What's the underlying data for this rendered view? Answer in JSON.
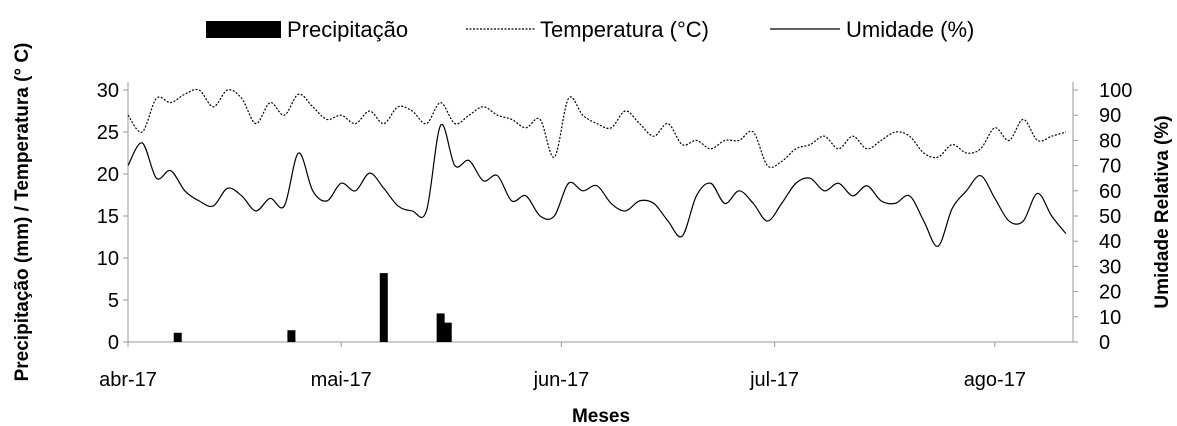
{
  "chart_data": {
    "type": "bar",
    "legend": {
      "position": "top",
      "items": [
        "Precipitação",
        "Temperatura (°C)",
        "Umidade (%)"
      ]
    },
    "x": {
      "label": "Meses",
      "tick_labels": [
        "abr-17",
        "mai-17",
        "jun-17",
        "jul-17",
        "ago-17"
      ],
      "range": [
        "2017-04-01",
        "2017-08-12"
      ]
    },
    "y_left": {
      "label": "Precipitação (mm) / Temperatura (° C)",
      "range": [
        0,
        30
      ],
      "ticks": [
        "0",
        "5",
        "10",
        "15",
        "20",
        "25",
        "30"
      ]
    },
    "y_right": {
      "label": "Umidade Relativa (%)",
      "range": [
        0,
        100
      ],
      "ticks": [
        "0",
        "10",
        "20",
        "30",
        "40",
        "50",
        "60",
        "70",
        "80",
        "90",
        "100"
      ]
    },
    "grid": false,
    "series": [
      {
        "name": "Precipitação",
        "type": "bar",
        "axis": "left",
        "color": "#000000",
        "x": [
          "2017-04-08",
          "2017-04-24",
          "2017-05-07",
          "2017-05-15",
          "2017-05-16"
        ],
        "values": [
          1.1,
          1.4,
          8.2,
          3.4,
          2.3
        ]
      },
      {
        "name": "Temperatura (°C)",
        "type": "line",
        "style": "dotted",
        "axis": "left",
        "color": "#000000",
        "x": [
          "2017-04-01",
          "2017-04-03",
          "2017-04-05",
          "2017-04-07",
          "2017-04-09",
          "2017-04-11",
          "2017-04-13",
          "2017-04-15",
          "2017-04-17",
          "2017-04-19",
          "2017-04-21",
          "2017-04-23",
          "2017-04-25",
          "2017-04-27",
          "2017-04-29",
          "2017-05-01",
          "2017-05-03",
          "2017-05-05",
          "2017-05-07",
          "2017-05-09",
          "2017-05-11",
          "2017-05-13",
          "2017-05-15",
          "2017-05-17",
          "2017-05-19",
          "2017-05-21",
          "2017-05-23",
          "2017-05-25",
          "2017-05-27",
          "2017-05-29",
          "2017-05-31",
          "2017-06-02",
          "2017-06-04",
          "2017-06-06",
          "2017-06-08",
          "2017-06-10",
          "2017-06-12",
          "2017-06-14",
          "2017-06-16",
          "2017-06-18",
          "2017-06-20",
          "2017-06-22",
          "2017-06-24",
          "2017-06-26",
          "2017-06-28",
          "2017-06-30",
          "2017-07-02",
          "2017-07-04",
          "2017-07-06",
          "2017-07-08",
          "2017-07-10",
          "2017-07-12",
          "2017-07-14",
          "2017-07-16",
          "2017-07-18",
          "2017-07-20",
          "2017-07-22",
          "2017-07-24",
          "2017-07-26",
          "2017-07-28",
          "2017-07-30",
          "2017-08-01",
          "2017-08-03",
          "2017-08-05",
          "2017-08-07",
          "2017-08-09",
          "2017-08-11"
        ],
        "values": [
          27.0,
          25.0,
          29.0,
          28.5,
          29.5,
          30.0,
          28.0,
          30.0,
          29.0,
          26.0,
          28.5,
          27.0,
          29.5,
          28.0,
          26.5,
          27.0,
          26.0,
          27.5,
          26.0,
          28.0,
          27.5,
          26.0,
          28.5,
          26.0,
          27.0,
          28.0,
          27.0,
          26.5,
          25.5,
          26.5,
          22.0,
          29.0,
          27.0,
          26.0,
          25.5,
          27.5,
          26.0,
          24.5,
          26.0,
          23.5,
          24.0,
          23.0,
          24.0,
          24.0,
          25.0,
          21.0,
          21.5,
          23.0,
          23.5,
          24.5,
          23.0,
          24.5,
          23.0,
          24.0,
          25.0,
          24.5,
          22.5,
          22.0,
          23.5,
          22.5,
          23.0,
          25.5,
          24.0,
          26.5,
          24.0,
          24.5,
          25.0
        ]
      },
      {
        "name": "Umidade (%)",
        "type": "line",
        "style": "solid",
        "axis": "right",
        "color": "#000000",
        "x": [
          "2017-04-01",
          "2017-04-03",
          "2017-04-05",
          "2017-04-07",
          "2017-04-09",
          "2017-04-11",
          "2017-04-13",
          "2017-04-15",
          "2017-04-17",
          "2017-04-19",
          "2017-04-21",
          "2017-04-23",
          "2017-04-25",
          "2017-04-27",
          "2017-04-29",
          "2017-05-01",
          "2017-05-03",
          "2017-05-05",
          "2017-05-07",
          "2017-05-09",
          "2017-05-11",
          "2017-05-13",
          "2017-05-15",
          "2017-05-17",
          "2017-05-19",
          "2017-05-21",
          "2017-05-23",
          "2017-05-25",
          "2017-05-27",
          "2017-05-29",
          "2017-05-31",
          "2017-06-02",
          "2017-06-04",
          "2017-06-06",
          "2017-06-08",
          "2017-06-10",
          "2017-06-12",
          "2017-06-14",
          "2017-06-16",
          "2017-06-18",
          "2017-06-20",
          "2017-06-22",
          "2017-06-24",
          "2017-06-26",
          "2017-06-28",
          "2017-06-30",
          "2017-07-02",
          "2017-07-04",
          "2017-07-06",
          "2017-07-08",
          "2017-07-10",
          "2017-07-12",
          "2017-07-14",
          "2017-07-16",
          "2017-07-18",
          "2017-07-20",
          "2017-07-22",
          "2017-07-24",
          "2017-07-26",
          "2017-07-28",
          "2017-07-30",
          "2017-08-01",
          "2017-08-03",
          "2017-08-05",
          "2017-08-07",
          "2017-08-09",
          "2017-08-11"
        ],
        "values": [
          70,
          79,
          65,
          68,
          60,
          56,
          54,
          61,
          58,
          52,
          57,
          54,
          75,
          60,
          56,
          63,
          60,
          67,
          61,
          54,
          52,
          52,
          86,
          70,
          72,
          64,
          66,
          56,
          58,
          50,
          50,
          63,
          60,
          62,
          55,
          52,
          56,
          55,
          48,
          42,
          58,
          63,
          55,
          60,
          55,
          48,
          55,
          63,
          65,
          60,
          63,
          58,
          62,
          56,
          55,
          58,
          48,
          38,
          53,
          60,
          66,
          57,
          48,
          48,
          59,
          50,
          43
        ]
      }
    ]
  }
}
